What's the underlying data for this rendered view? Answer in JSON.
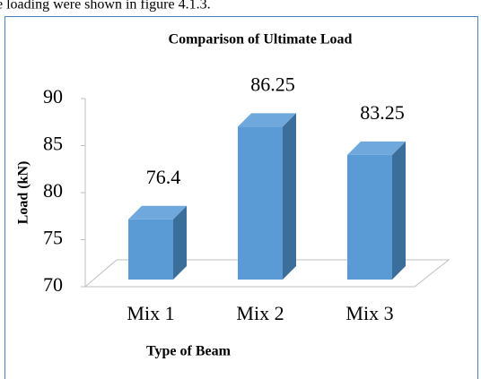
{
  "page_text": "e loading were shown in figure 4.1.3.",
  "chart_data": {
    "type": "bar",
    "title": "Comparison of Ultimate Load",
    "x_label": "Type of Beam",
    "y_label": "Load (kN)",
    "categories": [
      "Mix 1",
      "Mix 2",
      "Mix 3"
    ],
    "values": [
      76.4,
      86.25,
      83.25
    ],
    "color": "#5b9bd5",
    "ylim": [
      70,
      90
    ],
    "yticks": [
      70,
      75,
      80,
      85,
      90
    ],
    "grid": false
  }
}
